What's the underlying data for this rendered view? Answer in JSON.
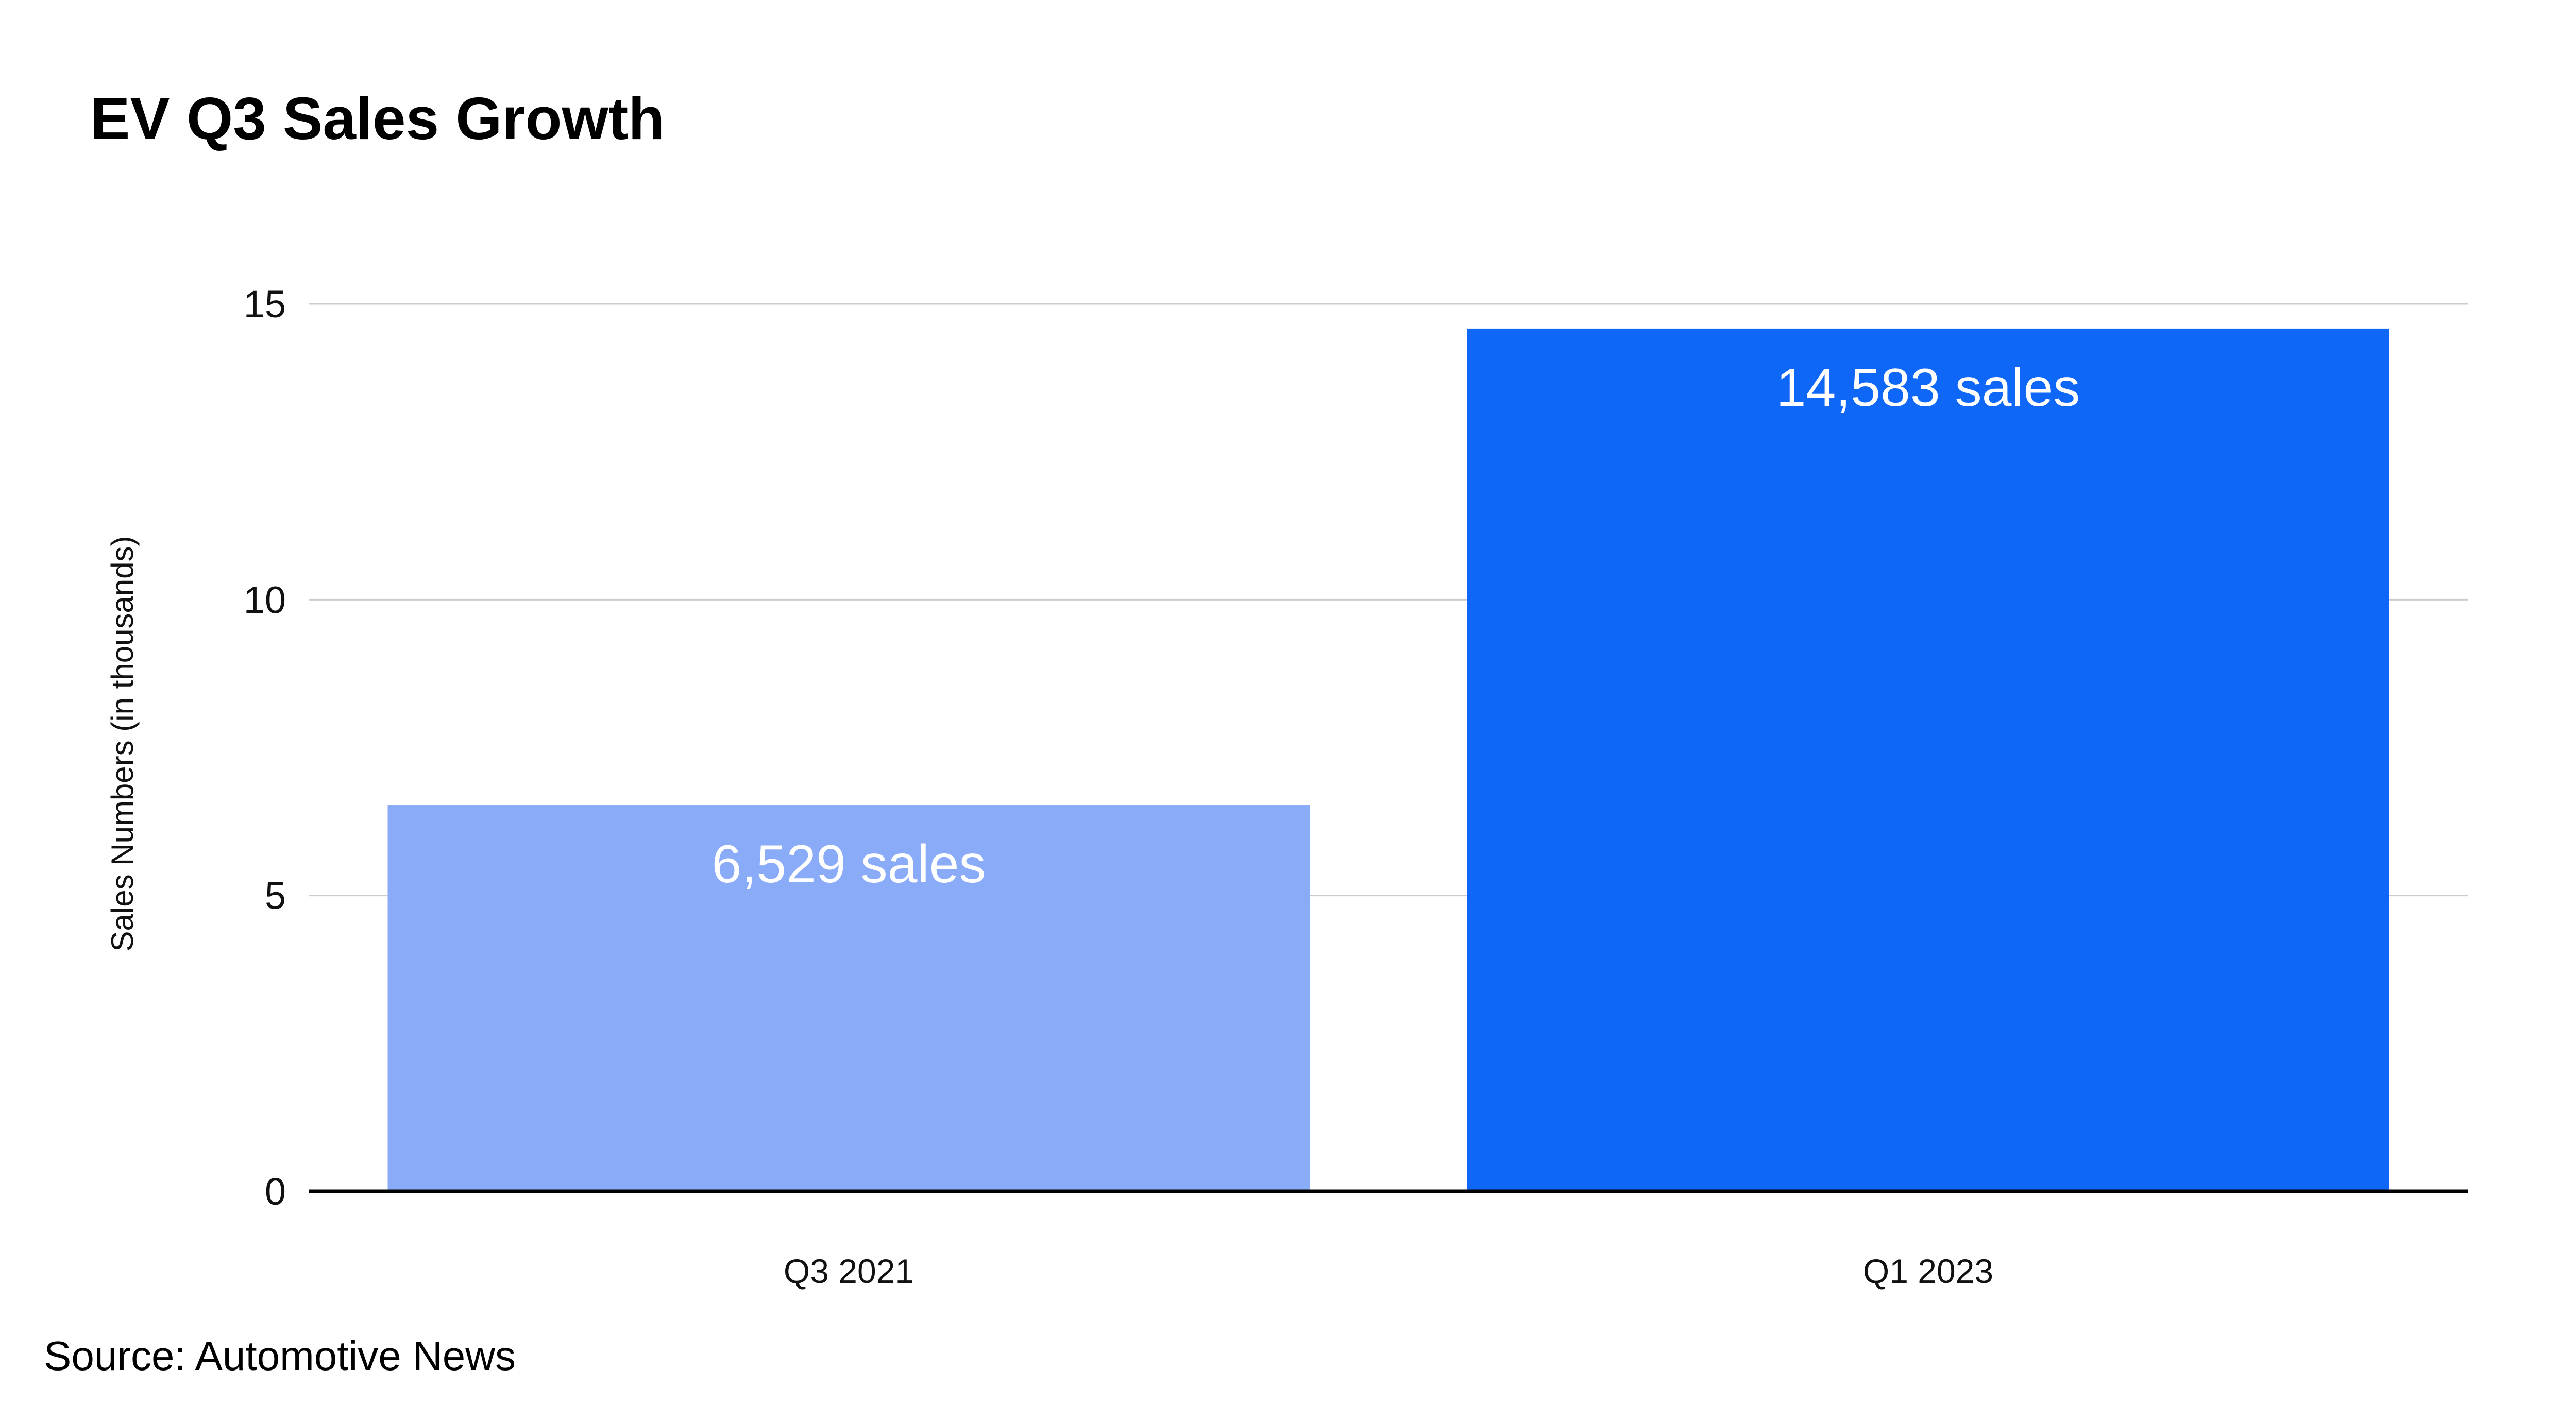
{
  "chart_data": {
    "type": "bar",
    "title": "EV Q3 Sales Growth",
    "ylabel": "Sales Numbers (in thousands)",
    "xlabel": "",
    "categories": [
      "Q3 2021",
      "Q1 2023"
    ],
    "values": [
      6.529,
      14.583
    ],
    "data_labels": [
      "6,529 sales",
      "14,583 sales"
    ],
    "bar_colors": [
      "#8aabf8",
      "#0f67f8"
    ],
    "ylim": [
      0,
      15
    ],
    "yticks": [
      0,
      5,
      10,
      15
    ],
    "grid": true,
    "legend": "none"
  },
  "source": "Source: Automotive News",
  "colors": {
    "gridline": "#cccccc",
    "baseline": "#000000",
    "text": "#111111"
  }
}
